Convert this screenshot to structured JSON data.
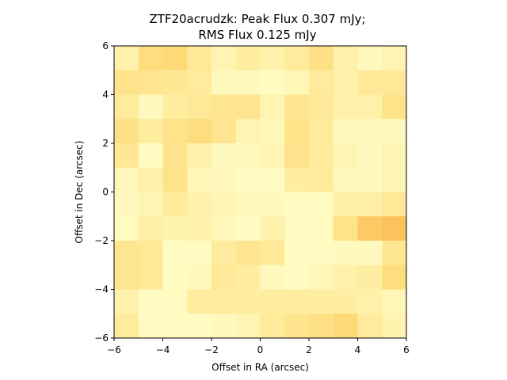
{
  "chart_data": {
    "type": "heatmap",
    "title_line1": "ZTF20acrudzk: Peak Flux 0.307 mJy;",
    "title_line2": "RMS Flux 0.125 mJy",
    "xlabel": "Offset in RA (arcsec)",
    "ylabel": "Offset in Dec (arcsec)",
    "xlim": [
      -6,
      6
    ],
    "ylim": [
      -6,
      6
    ],
    "xticks": [
      -6,
      -4,
      -2,
      0,
      2,
      4,
      6
    ],
    "yticks": [
      -6,
      -4,
      -2,
      0,
      2,
      4,
      6
    ],
    "xtick_labels": [
      "−6",
      "−4",
      "−2",
      "0",
      "2",
      "4",
      "6"
    ],
    "ytick_labels": [
      "−6",
      "−4",
      "−2",
      "0",
      "2",
      "4",
      "6"
    ],
    "colormap": "YlOrRd",
    "grid_size": 12,
    "cell_size_arcsec": 1,
    "rows_top_to_bottom": [
      [
        0.2,
        0.45,
        0.5,
        0.3,
        0.15,
        0.25,
        0.18,
        0.28,
        0.4,
        0.2,
        0.08,
        0.15
      ],
      [
        0.38,
        0.35,
        0.33,
        0.28,
        0.08,
        0.08,
        0.06,
        0.12,
        0.28,
        0.2,
        0.3,
        0.3
      ],
      [
        0.28,
        0.08,
        0.25,
        0.3,
        0.35,
        0.35,
        0.14,
        0.35,
        0.3,
        0.2,
        0.2,
        0.38
      ],
      [
        0.4,
        0.25,
        0.38,
        0.45,
        0.35,
        0.15,
        0.1,
        0.38,
        0.28,
        0.08,
        0.08,
        0.08
      ],
      [
        0.33,
        0.06,
        0.37,
        0.2,
        0.08,
        0.08,
        0.15,
        0.37,
        0.28,
        0.14,
        0.08,
        0.14
      ],
      [
        0.1,
        0.2,
        0.38,
        0.12,
        0.1,
        0.06,
        0.06,
        0.25,
        0.28,
        0.08,
        0.08,
        0.14
      ],
      [
        0.08,
        0.14,
        0.28,
        0.18,
        0.14,
        0.08,
        0.08,
        0.06,
        0.06,
        0.22,
        0.22,
        0.3
      ],
      [
        0.06,
        0.22,
        0.16,
        0.18,
        0.1,
        0.06,
        0.18,
        0.06,
        0.06,
        0.38,
        0.6,
        0.65
      ],
      [
        0.35,
        0.3,
        0.06,
        0.06,
        0.26,
        0.35,
        0.3,
        0.06,
        0.06,
        0.08,
        0.08,
        0.32
      ],
      [
        0.35,
        0.3,
        0.06,
        0.08,
        0.3,
        0.24,
        0.08,
        0.06,
        0.12,
        0.2,
        0.24,
        0.45
      ],
      [
        0.18,
        0.06,
        0.06,
        0.26,
        0.26,
        0.24,
        0.24,
        0.24,
        0.24,
        0.24,
        0.2,
        0.12
      ],
      [
        0.28,
        0.06,
        0.06,
        0.06,
        0.08,
        0.14,
        0.28,
        0.36,
        0.4,
        0.5,
        0.28,
        0.16
      ]
    ]
  }
}
